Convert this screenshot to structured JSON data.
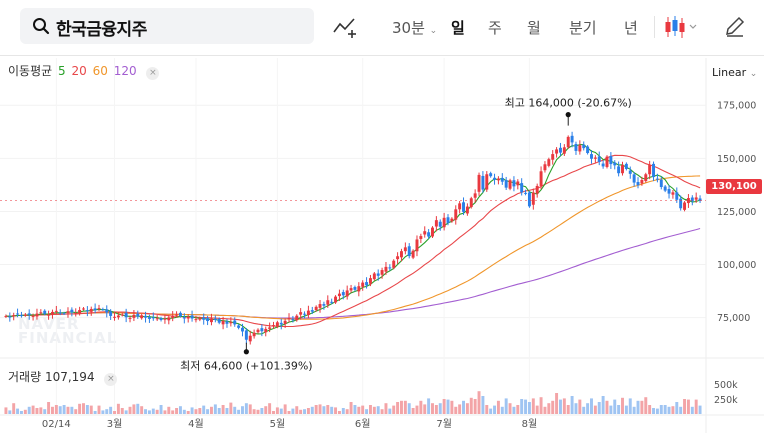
{
  "search": {
    "value": "한국금융지주"
  },
  "periods": [
    {
      "label": "30분",
      "has_dropdown": true,
      "active": false
    },
    {
      "label": "일",
      "active": true
    },
    {
      "label": "주",
      "active": false
    },
    {
      "label": "월",
      "active": false
    },
    {
      "label": "분기",
      "active": false
    },
    {
      "label": "년",
      "active": false
    }
  ],
  "toolbar_icons": [
    "chart-line-add-icon",
    "candle-type-icon",
    "pencil-draw-icon"
  ],
  "ma_legend": {
    "label": "이동평균",
    "periods": [
      {
        "value": "5",
        "color": "#2aa12a"
      },
      {
        "value": "20",
        "color": "#e8474a"
      },
      {
        "value": "60",
        "color": "#f0962b"
      },
      {
        "value": "120",
        "color": "#a35ed1"
      }
    ],
    "close": "×"
  },
  "scale_mode": "Linear",
  "volume_legend": {
    "label": "거래량",
    "value": "107,194",
    "close": "×"
  },
  "watermark": [
    "NAVER",
    "FINANCIAL"
  ],
  "current_price": "130,100",
  "chart_data": {
    "type": "candlestick",
    "price_axis": {
      "ticks": [
        75000,
        100000,
        125000,
        150000,
        175000
      ],
      "labels": [
        "75,000",
        "100,000",
        "125,000",
        "150,000",
        "175,000"
      ],
      "ylim": [
        56000,
        185000
      ]
    },
    "volume_axis": {
      "ticks": [
        250000,
        500000
      ],
      "labels": [
        "250k",
        "500k"
      ]
    },
    "x_labels": [
      "02/14",
      "3월",
      "4월",
      "5월",
      "6월",
      "7월",
      "8월"
    ],
    "annotations": {
      "high": {
        "label": "최고",
        "value": "164,000",
        "change": "(-20.67%)"
      },
      "low": {
        "label": "최저",
        "value": "64,600",
        "change": "(+101.39%)"
      }
    },
    "up_color": "#e9383f",
    "down_color": "#2a7fe8",
    "closes": [
      75800,
      75400,
      76200,
      76700,
      76100,
      76500,
      76300,
      75800,
      76900,
      77500,
      76800,
      76400,
      77700,
      78200,
      77300,
      77000,
      78000,
      77500,
      77100,
      78600,
      79300,
      78000,
      79100,
      78500,
      79500,
      78900,
      77400,
      75800,
      75400,
      76000,
      76500,
      75200,
      74900,
      76300,
      75500,
      76100,
      75000,
      74400,
      75000,
      74700,
      73900,
      74500,
      75100,
      75800,
      76500,
      75700,
      74600,
      75500,
      74600,
      74300,
      74800,
      74000,
      73400,
      74500,
      73900,
      72600,
      73500,
      72100,
      72900,
      71800,
      70200,
      68500,
      64600,
      66500,
      67900,
      69300,
      68600,
      69700,
      70400,
      71500,
      72800,
      71800,
      73500,
      74800,
      73800,
      75900,
      77600,
      76500,
      78300,
      77800,
      80100,
      81400,
      80600,
      83200,
      82400,
      84900,
      86300,
      85500,
      87800,
      88900,
      88100,
      89800,
      91500,
      90200,
      93600,
      95800,
      94700,
      97400,
      98900,
      98200,
      101800,
      103900,
      106300,
      108100,
      104000,
      106500,
      111800,
      113400,
      115700,
      113200,
      117400,
      120900,
      117800,
      122000,
      119600,
      121600,
      126000,
      128800,
      124800,
      127300,
      131200,
      133500,
      142200,
      135300,
      142500,
      141600,
      139900,
      140500,
      139000,
      136200,
      139700,
      136800,
      139100,
      134000,
      133700,
      127400,
      133900,
      137000,
      143900,
      147200,
      149600,
      152000,
      154200,
      152700,
      155200,
      160100,
      157500,
      153500,
      156200,
      154800,
      152500,
      149800,
      150400,
      148300,
      146200,
      150800,
      147300,
      146700,
      143000,
      146900,
      145000,
      142700,
      138600,
      137400,
      139800,
      142500,
      146900,
      141200,
      140200,
      136500,
      134800,
      133400,
      134000,
      130500,
      126500,
      129200,
      131300,
      129800,
      131600,
      130100
    ],
    "volumes": [
      0.11,
      0.06,
      0.18,
      0.09,
      0.05,
      0.07,
      0.12,
      0.14,
      0.1,
      0.11,
      0.08,
      0.2,
      0.12,
      0.15,
      0.13,
      0.15,
      0.12,
      0.12,
      0.08,
      0.17,
      0.18,
      0.15,
      0.14,
      0.05,
      0.14,
      0.06,
      0.08,
      0.12,
      0.05,
      0.17,
      0.1,
      0.06,
      0.12,
      0.16,
      0.17,
      0.13,
      0.08,
      0.06,
      0.09,
      0.07,
      0.15,
      0.06,
      0.12,
      0.06,
      0.1,
      0.13,
      0.07,
      0.05,
      0.11,
      0.08,
      0.1,
      0.14,
      0.08,
      0.12,
      0.16,
      0.1,
      0.15,
      0.1,
      0.19,
      0.12,
      0.07,
      0.13,
      0.18,
      0.16,
      0.08,
      0.07,
      0.1,
      0.13,
      0.18,
      0.05,
      0.11,
      0.09,
      0.16,
      0.05,
      0.09,
      0.13,
      0.07,
      0.08,
      0.1,
      0.12,
      0.15,
      0.16,
      0.13,
      0.15,
      0.12,
      0.11,
      0.05,
      0.1,
      0.08,
      0.2,
      0.15,
      0.12,
      0.14,
      0.08,
      0.15,
      0.12,
      0.13,
      0.08,
      0.18,
      0.09,
      0.14,
      0.2,
      0.22,
      0.22,
      0.18,
      0.1,
      0.14,
      0.22,
      0.16,
      0.26,
      0.18,
      0.15,
      0.18,
      0.25,
      0.24,
      0.22,
      0.12,
      0.16,
      0.22,
      0.18,
      0.27,
      0.25,
      0.38,
      0.3,
      0.15,
      0.09,
      0.14,
      0.22,
      0.12,
      0.26,
      0.18,
      0.12,
      0.15,
      0.25,
      0.24,
      0.2,
      0.26,
      0.14,
      0.28,
      0.12,
      0.18,
      0.22,
      0.35,
      0.24,
      0.26,
      0.15,
      0.3,
      0.18,
      0.24,
      0.12,
      0.18,
      0.26,
      0.14,
      0.2,
      0.3,
      0.22,
      0.14,
      0.24,
      0.15,
      0.27,
      0.14,
      0.26,
      0.12,
      0.22,
      0.22,
      0.28,
      0.15,
      0.1,
      0.09,
      0.15,
      0.15,
      0.12,
      0.13,
      0.2,
      0.12,
      0.25,
      0.24,
      0.12,
      0.24,
      0.14
    ]
  }
}
